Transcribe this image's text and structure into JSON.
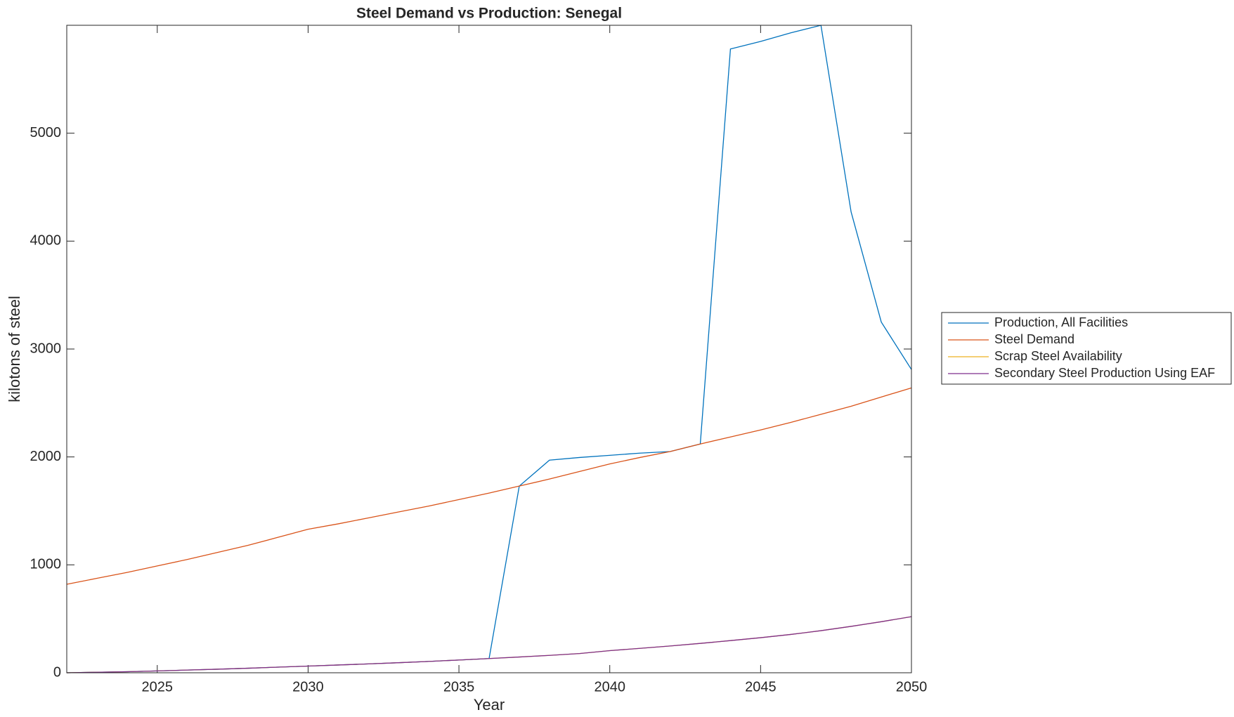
{
  "chart_data": {
    "type": "line",
    "title": "Steel Demand vs Production: Senegal",
    "x_label": "Year",
    "y_label": "kilotons of steel",
    "x": [
      2022,
      2023,
      2024,
      2025,
      2026,
      2027,
      2028,
      2029,
      2030,
      2031,
      2032,
      2033,
      2034,
      2035,
      2036,
      2037,
      2038,
      2039,
      2040,
      2041,
      2042,
      2043,
      2044,
      2045,
      2046,
      2047,
      2048,
      2049,
      2050
    ],
    "series": [
      {
        "name": "Production, All Facilities",
        "color": "#0072BD",
        "values": [
          0,
          5,
          10,
          17,
          25,
          33,
          42,
          52,
          62,
          72,
          82,
          93,
          105,
          118,
          132,
          1730,
          1970,
          1995,
          2015,
          2035,
          2050,
          2120,
          5780,
          5850,
          5930,
          6000,
          4270,
          3250,
          2810
        ]
      },
      {
        "name": "Steel Demand",
        "color": "#D95319",
        "values": [
          820,
          875,
          930,
          990,
          1050,
          1115,
          1180,
          1255,
          1330,
          1380,
          1435,
          1490,
          1545,
          1605,
          1665,
          1730,
          1795,
          1865,
          1935,
          1995,
          2050,
          2120,
          2185,
          2250,
          2320,
          2395,
          2470,
          2555,
          2640
        ]
      },
      {
        "name": "Scrap Steel Availability",
        "color": "#EDB120",
        "values": [
          0,
          5,
          10,
          17,
          25,
          33,
          42,
          52,
          62,
          72,
          82,
          93,
          105,
          118,
          132,
          146,
          161,
          178,
          205,
          226,
          248,
          272,
          298,
          325,
          355,
          390,
          430,
          473,
          520
        ]
      },
      {
        "name": "Secondary Steel Production Using EAF",
        "color": "#7E2F8E",
        "values": [
          0,
          5,
          10,
          17,
          25,
          33,
          42,
          52,
          62,
          72,
          82,
          93,
          105,
          118,
          132,
          146,
          161,
          178,
          205,
          226,
          248,
          272,
          298,
          325,
          355,
          390,
          430,
          473,
          520
        ]
      }
    ],
    "xlim": [
      2022,
      2050
    ],
    "xticks": [
      2025,
      2030,
      2035,
      2040,
      2045,
      2050
    ],
    "ylim": [
      0,
      6000
    ],
    "yticks": [
      0,
      1000,
      2000,
      3000,
      4000,
      5000
    ],
    "legend": "outside-right"
  }
}
